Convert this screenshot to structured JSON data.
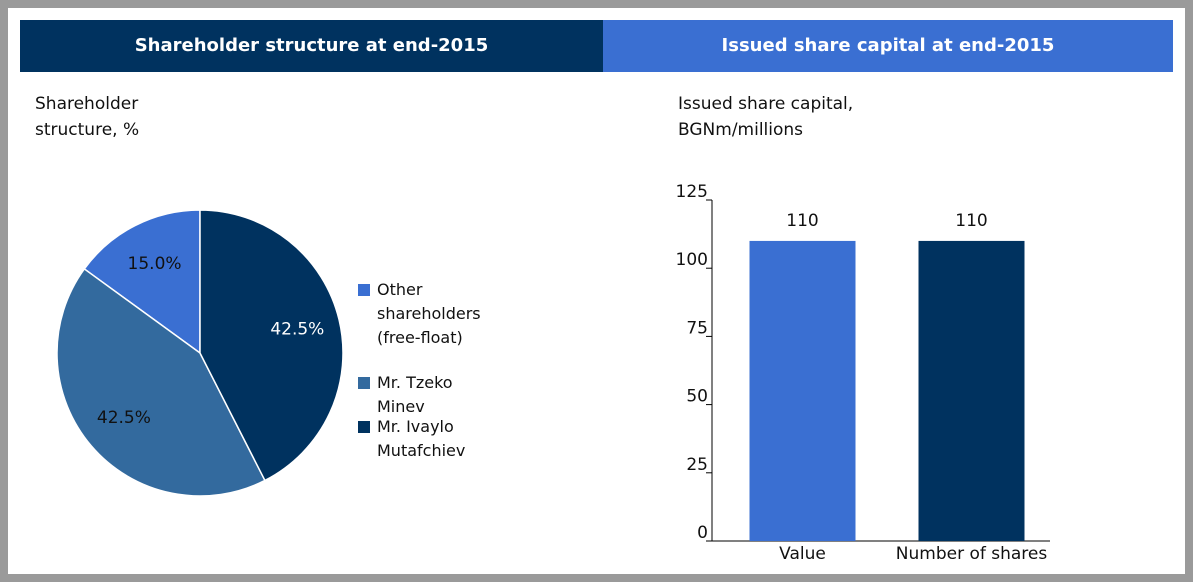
{
  "chart_data": [
    {
      "type": "pie",
      "header": "Shareholder structure at end-2015",
      "title": "Shareholder structure, %",
      "categories": [
        "Other shareholders (free-float)",
        "Mr. Tzeko Minev",
        "Mr. Ivaylo Mutafchiev"
      ],
      "values": [
        15,
        42.5,
        42.5
      ],
      "value_labels": [
        "15.0%",
        "42.5%",
        "42.5%"
      ],
      "colors": [
        "#3a6fd2",
        "#336a9e",
        "#00325f"
      ],
      "legend": "right"
    },
    {
      "type": "bar",
      "header": "Issued share capital at end-2015",
      "title": "Issued share capital, BGNm/millions",
      "categories": [
        "Value",
        "Number of shares"
      ],
      "values": [
        110,
        110
      ],
      "colors": [
        "#3a6fd2",
        "#00325f"
      ],
      "ylim": [
        0,
        125
      ],
      "yticks": [
        0,
        25,
        50,
        75,
        100,
        125
      ],
      "grid": false
    }
  ]
}
